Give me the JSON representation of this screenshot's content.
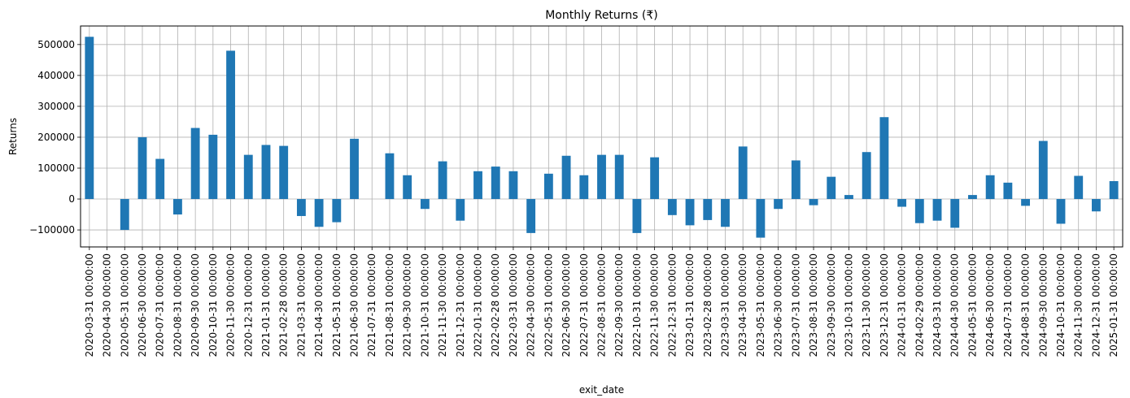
{
  "chart_data": {
    "type": "bar",
    "title": "Monthly Returns (₹)",
    "xlabel": "exit_date",
    "ylabel": "Returns",
    "ylim": [
      -155000,
      560000
    ],
    "yticks": [
      -100000,
      0,
      100000,
      200000,
      300000,
      400000,
      500000
    ],
    "ytick_labels": [
      "−100000",
      "0",
      "100000",
      "200000",
      "300000",
      "400000",
      "500000"
    ],
    "grid": true,
    "bar_color": "#1f77b4",
    "categories": [
      "2020-03-31 00:00:00",
      "2020-04-30 00:00:00",
      "2020-05-31 00:00:00",
      "2020-06-30 00:00:00",
      "2020-07-31 00:00:00",
      "2020-08-31 00:00:00",
      "2020-09-30 00:00:00",
      "2020-10-31 00:00:00",
      "2020-11-30 00:00:00",
      "2020-12-31 00:00:00",
      "2021-01-31 00:00:00",
      "2021-02-28 00:00:00",
      "2021-03-31 00:00:00",
      "2021-04-30 00:00:00",
      "2021-05-31 00:00:00",
      "2021-06-30 00:00:00",
      "2021-07-31 00:00:00",
      "2021-08-31 00:00:00",
      "2021-09-30 00:00:00",
      "2021-10-31 00:00:00",
      "2021-11-30 00:00:00",
      "2021-12-31 00:00:00",
      "2022-01-31 00:00:00",
      "2022-02-28 00:00:00",
      "2022-03-31 00:00:00",
      "2022-04-30 00:00:00",
      "2022-05-31 00:00:00",
      "2022-06-30 00:00:00",
      "2022-07-31 00:00:00",
      "2022-08-31 00:00:00",
      "2022-09-30 00:00:00",
      "2022-10-31 00:00:00",
      "2022-11-30 00:00:00",
      "2022-12-31 00:00:00",
      "2023-01-31 00:00:00",
      "2023-02-28 00:00:00",
      "2023-03-31 00:00:00",
      "2023-04-30 00:00:00",
      "2023-05-31 00:00:00",
      "2023-06-30 00:00:00",
      "2023-07-31 00:00:00",
      "2023-08-31 00:00:00",
      "2023-09-30 00:00:00",
      "2023-10-31 00:00:00",
      "2023-11-30 00:00:00",
      "2023-12-31 00:00:00",
      "2024-01-31 00:00:00",
      "2024-02-29 00:00:00",
      "2024-03-31 00:00:00",
      "2024-04-30 00:00:00",
      "2024-05-31 00:00:00",
      "2024-06-30 00:00:00",
      "2024-07-31 00:00:00",
      "2024-08-31 00:00:00",
      "2024-09-30 00:00:00",
      "2024-10-31 00:00:00",
      "2024-11-30 00:00:00",
      "2024-12-31 00:00:00",
      "2025-01-31 00:00:00"
    ],
    "values": [
      525000,
      0,
      -100000,
      200000,
      130000,
      -50000,
      230000,
      208000,
      480000,
      143000,
      175000,
      172000,
      -55000,
      -90000,
      -75000,
      195000,
      0,
      148000,
      77000,
      -32000,
      122000,
      -70000,
      90000,
      105000,
      90000,
      -110000,
      82000,
      140000,
      77000,
      143000,
      143000,
      -110000,
      135000,
      -52000,
      -85000,
      -68000,
      -90000,
      170000,
      -125000,
      -32000,
      125000,
      -20000,
      72000,
      13000,
      152000,
      265000,
      -25000,
      -78000,
      -70000,
      -93000,
      13000,
      77000,
      53000,
      -22000,
      188000,
      -80000,
      75000,
      -40000,
      58000
    ]
  }
}
